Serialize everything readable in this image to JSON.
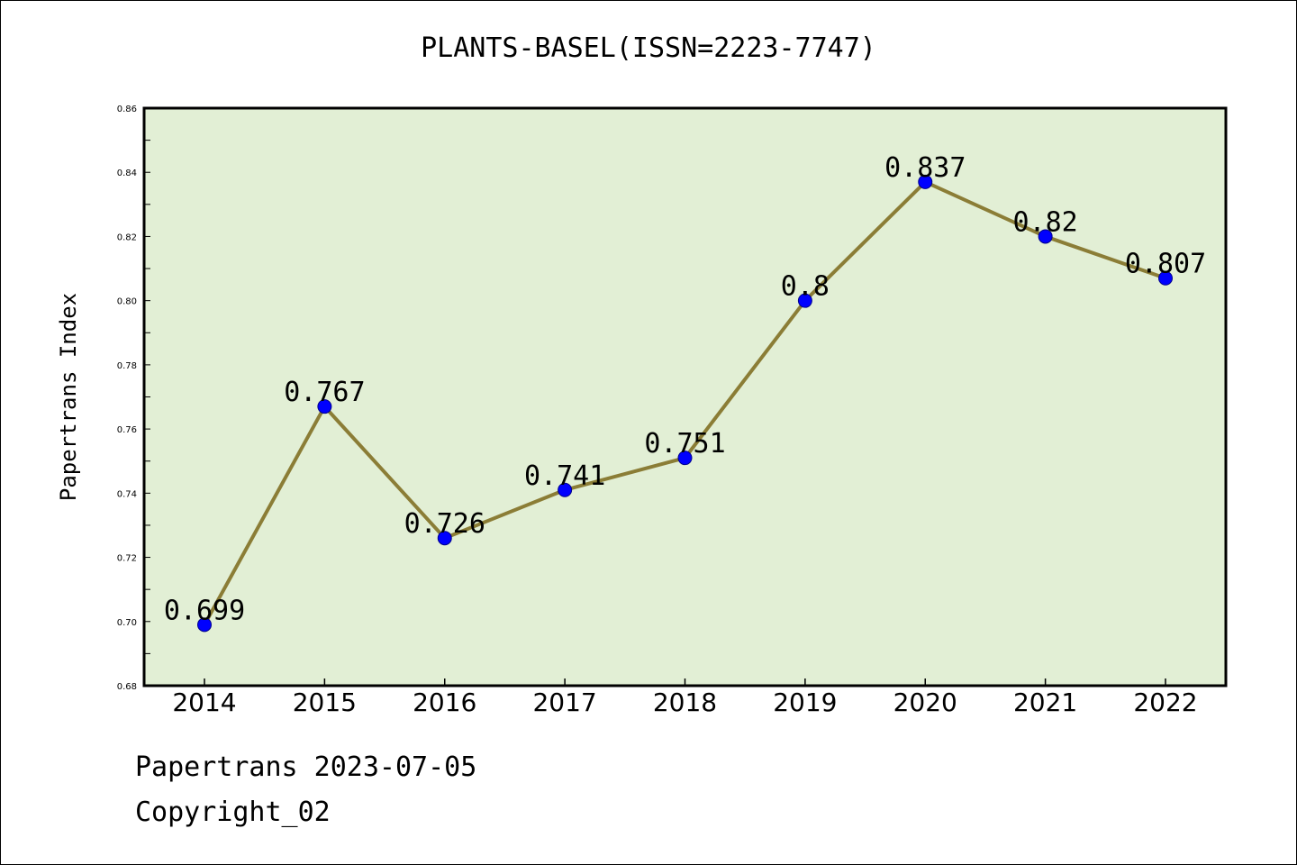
{
  "header": {
    "title": "PLANTS-BASEL(ISSN=2223-7747)"
  },
  "footer": {
    "date_line": "Papertrans 2023-07-05",
    "copyright_line": "Copyright_02"
  },
  "colors": {
    "plot_background": "#e2efd5",
    "line": "#8b7d36",
    "marker": "#0000ff",
    "axis": "#000000"
  },
  "chart_data": {
    "type": "line",
    "title": "PLANTS-BASEL(ISSN=2223-7747)",
    "xlabel": "",
    "ylabel": "Papertrans Index",
    "categories": [
      "2014",
      "2015",
      "2016",
      "2017",
      "2018",
      "2019",
      "2020",
      "2021",
      "2022"
    ],
    "values": [
      0.699,
      0.767,
      0.726,
      0.741,
      0.751,
      0.8,
      0.837,
      0.82,
      0.807
    ],
    "data_labels": [
      "0.699",
      "0.767",
      "0.726",
      "0.741",
      "0.751",
      "0.8",
      "0.837",
      "0.82",
      "0.807"
    ],
    "ylim": [
      0.68,
      0.86
    ],
    "yticks": [
      "0.68",
      "0.70",
      "0.72",
      "0.74",
      "0.76",
      "0.78",
      "0.80",
      "0.82",
      "0.84",
      "0.86"
    ],
    "grid": false,
    "legend": "none"
  }
}
